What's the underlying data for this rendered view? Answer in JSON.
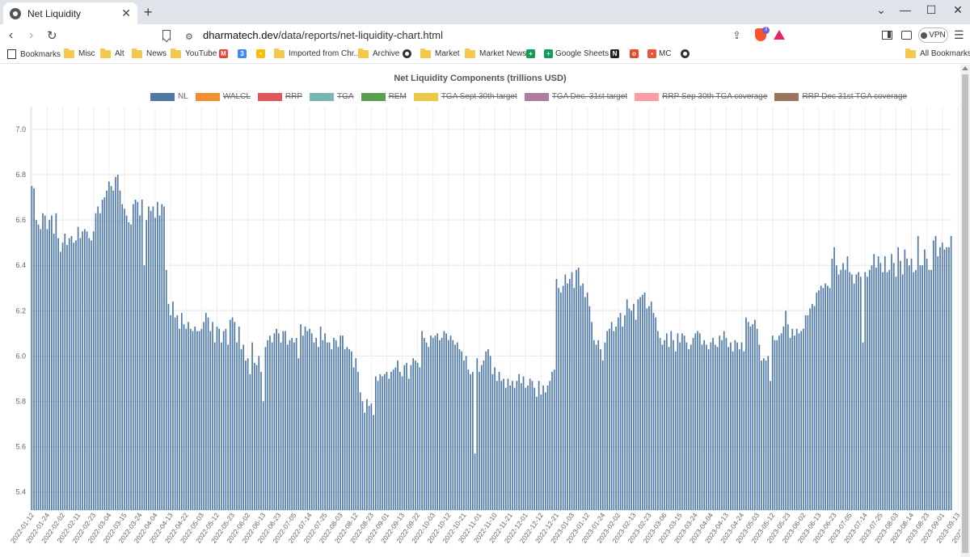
{
  "browser": {
    "tab_title": "Net Liquidity",
    "tab_close": "✕",
    "new_tab": "+",
    "url_host": "dharmatech.dev",
    "url_path": "/data/reports/net-liquidity-chart.html",
    "vpn_label": "VPN",
    "brave_badge_count": "3",
    "window_controls": [
      "⌄",
      "—",
      "☐",
      "✕"
    ]
  },
  "bookmarks": [
    {
      "label": "Bookmarks",
      "icon": "bookmarks-icon"
    },
    {
      "label": "Misc",
      "icon": "folder-icon"
    },
    {
      "label": "Alt",
      "icon": "folder-icon"
    },
    {
      "label": "News",
      "icon": "folder-icon"
    },
    {
      "label": "YouTube",
      "icon": "folder-icon"
    },
    {
      "label": "",
      "icon": "gmail-icon"
    },
    {
      "label": "",
      "icon": "calendar-icon"
    },
    {
      "label": "",
      "icon": "keep-icon"
    },
    {
      "label": "Imported from Chr...",
      "icon": "folder-icon"
    },
    {
      "label": "Archive",
      "icon": "folder-icon"
    },
    {
      "label": "",
      "icon": "globe-icon"
    },
    {
      "label": "Market",
      "icon": "folder-icon"
    },
    {
      "label": "Market News",
      "icon": "folder-icon"
    },
    {
      "label": "",
      "icon": "sheets-icon"
    },
    {
      "label": "Google Sheets",
      "icon": "sheets-icon"
    },
    {
      "label": "",
      "icon": "notion-icon"
    },
    {
      "label": "",
      "icon": "red-app-icon"
    },
    {
      "label": "MC",
      "icon": "mc-icon"
    },
    {
      "label": "",
      "icon": "globe-icon"
    },
    {
      "label": "All Bookmarks",
      "icon": "folder-icon"
    }
  ],
  "chart_data": {
    "type": "bar",
    "title": "Net Liquidity Components (trillions USD)",
    "ylim": [
      5.32,
      7.1
    ],
    "yticks": [
      5.4,
      5.6,
      5.8,
      6.0,
      6.2,
      6.4,
      6.6,
      6.8,
      7.0
    ],
    "legend": [
      {
        "name": "NL",
        "color": "#4e79a7",
        "visible": true
      },
      {
        "name": "WALCL",
        "color": "#f28e2b",
        "visible": false
      },
      {
        "name": "RRP",
        "color": "#e15759",
        "visible": false
      },
      {
        "name": "TGA",
        "color": "#76b7b2",
        "visible": false
      },
      {
        "name": "REM",
        "color": "#59a14f",
        "visible": false
      },
      {
        "name": "TGA Sept 30th target",
        "color": "#edc948",
        "visible": false
      },
      {
        "name": "TGA Dec. 31st target",
        "color": "#b07aa1",
        "visible": false
      },
      {
        "name": "RRP Sep 30th TGA coverage",
        "color": "#ff9da7",
        "visible": false
      },
      {
        "name": "RRP Dec 31st TGA coverage",
        "color": "#9c755f",
        "visible": false
      }
    ],
    "x_tick_labels": [
      "2022-01-12",
      "2022-01-24",
      "2022-02-02",
      "2022-02-11",
      "2022-02-23",
      "2022-03-04",
      "2022-03-15",
      "2022-03-24",
      "2022-04-04",
      "2022-04-13",
      "2022-04-22",
      "2022-05-03",
      "2022-05-12",
      "2022-05-23",
      "2022-06-02",
      "2022-06-13",
      "2022-06-23",
      "2022-07-05",
      "2022-07-14",
      "2022-07-25",
      "2022-08-03",
      "2022-08-12",
      "2022-08-23",
      "2022-09-01",
      "2022-09-13",
      "2022-09-22",
      "2022-10-03",
      "2022-10-12",
      "2022-10-21",
      "2022-11-01",
      "2022-11-10",
      "2022-11-21",
      "2022-12-01",
      "2022-12-12",
      "2022-12-21",
      "2023-01-03",
      "2023-01-12",
      "2023-01-24",
      "2023-02-02",
      "2023-02-13",
      "2023-02-23",
      "2023-03-06",
      "2023-03-15",
      "2023-03-24",
      "2023-04-04",
      "2023-04-13",
      "2023-04-24",
      "2023-05-03",
      "2023-05-12",
      "2023-05-23",
      "2023-06-02",
      "2023-06-13",
      "2023-06-23",
      "2023-07-05",
      "2023-07-14",
      "2023-07-25",
      "2023-08-03",
      "2023-08-14",
      "2023-08-23",
      "2023-09-01",
      "2023-09-13",
      "2023-09-22",
      "2023-10-03",
      "2023-10-12",
      "2023-10-23",
      "2023-11-01",
      "2023-11-10",
      "2023-11-21",
      "2023-12-01",
      "2023-12-12",
      "2023-12-21",
      "2024-01-03",
      "2024-01-12",
      "2024-01-24",
      "2024-02-02",
      "2024-02-13",
      "2024-02-23",
      "2024-03-05",
      "2024-03-14"
    ],
    "bars_per_tick": 7,
    "values": [
      6.75,
      6.74,
      6.6,
      6.58,
      6.56,
      6.63,
      6.62,
      6.56,
      6.6,
      6.62,
      6.54,
      6.63,
      6.52,
      6.46,
      6.5,
      6.54,
      6.49,
      6.52,
      6.53,
      6.5,
      6.51,
      6.57,
      6.52,
      6.55,
      6.56,
      6.55,
      6.52,
      6.51,
      6.55,
      6.63,
      6.66,
      6.63,
      6.69,
      6.7,
      6.73,
      6.77,
      6.75,
      6.73,
      6.79,
      6.8,
      6.73,
      6.67,
      6.65,
      6.62,
      6.59,
      6.58,
      6.67,
      6.69,
      6.68,
      6.62,
      6.69,
      6.4,
      6.6,
      6.66,
      6.64,
      6.66,
      6.61,
      6.68,
      6.62,
      6.67,
      6.66,
      6.38,
      6.23,
      6.18,
      6.24,
      6.17,
      6.18,
      6.12,
      6.19,
      6.14,
      6.12,
      6.15,
      6.12,
      6.11,
      6.13,
      6.11,
      6.11,
      6.12,
      6.15,
      6.19,
      6.17,
      6.11,
      6.15,
      6.06,
      6.13,
      6.12,
      6.06,
      6.11,
      6.12,
      6.05,
      6.16,
      6.17,
      6.15,
      6.06,
      6.13,
      6.03,
      6.05,
      5.98,
      5.99,
      5.92,
      6.06,
      5.97,
      5.96,
      6.0,
      5.93,
      5.8,
      6.04,
      6.07,
      6.09,
      6.06,
      6.1,
      6.12,
      6.1,
      6.06,
      6.11,
      6.11,
      6.05,
      6.07,
      6.08,
      6.06,
      6.08,
      5.99,
      6.14,
      6.09,
      6.13,
      6.11,
      6.12,
      6.1,
      6.06,
      6.08,
      6.04,
      6.13,
      6.07,
      6.1,
      6.06,
      6.06,
      6.03,
      6.08,
      6.07,
      6.04,
      6.09,
      6.09,
      6.03,
      6.04,
      6.03,
      6.02,
      5.95,
      5.99,
      5.93,
      5.84,
      5.8,
      5.75,
      5.81,
      5.78,
      5.79,
      5.74,
      5.91,
      5.89,
      5.92,
      5.91,
      5.92,
      5.93,
      5.9,
      5.93,
      5.94,
      5.95,
      5.98,
      5.93,
      5.91,
      5.96,
      5.97,
      5.9,
      5.96,
      5.99,
      5.98,
      5.97,
      5.95,
      6.11,
      6.08,
      6.06,
      6.04,
      6.09,
      6.08,
      6.09,
      6.1,
      6.07,
      6.08,
      6.11,
      6.1,
      6.07,
      6.09,
      6.07,
      6.05,
      6.06,
      6.03,
      6.02,
      5.98,
      6.0,
      5.94,
      5.92,
      5.93,
      5.57,
      5.99,
      5.93,
      5.96,
      5.98,
      6.02,
      6.03,
      6.0,
      5.92,
      5.95,
      5.89,
      5.93,
      5.89,
      5.9,
      5.86,
      5.9,
      5.87,
      5.89,
      5.86,
      5.89,
      5.92,
      5.88,
      5.91,
      5.86,
      5.87,
      5.9,
      5.89,
      5.86,
      5.82,
      5.89,
      5.83,
      5.87,
      5.84,
      5.87,
      5.89,
      5.93,
      5.94,
      6.34,
      6.3,
      6.28,
      6.31,
      6.36,
      6.32,
      6.34,
      6.37,
      6.3,
      6.38,
      6.39,
      6.31,
      6.32,
      6.26,
      6.28,
      6.22,
      6.15,
      6.07,
      6.05,
      6.07,
      6.03,
      5.98,
      6.06,
      6.11,
      6.12,
      6.15,
      6.11,
      6.13,
      6.17,
      6.19,
      6.13,
      6.18,
      6.25,
      6.21,
      6.2,
      6.23,
      6.16,
      6.25,
      6.26,
      6.27,
      6.28,
      6.21,
      6.22,
      6.24,
      6.19,
      6.17,
      6.11,
      6.08,
      6.05,
      6.07,
      6.1,
      6.04,
      6.11,
      6.07,
      6.02,
      6.1,
      6.06,
      6.1,
      6.09,
      6.06,
      6.03,
      6.05,
      6.08,
      6.1,
      6.11,
      6.1,
      6.05,
      6.07,
      6.05,
      6.03,
      6.06,
      6.08,
      6.05,
      6.04,
      6.09,
      6.07,
      6.11,
      6.08,
      6.04,
      6.06,
      6.02,
      6.07,
      6.06,
      6.03,
      6.06,
      6.02,
      6.17,
      6.15,
      6.13,
      6.14,
      6.16,
      6.12,
      6.05,
      5.98,
      5.99,
      5.98,
      6.0,
      5.89,
      6.09,
      6.07,
      6.07,
      6.09,
      6.1,
      6.13,
      6.2,
      6.14,
      6.08,
      6.12,
      6.09,
      6.12,
      6.1,
      6.11,
      6.12,
      6.18,
      6.18,
      6.21,
      6.23,
      6.22,
      6.28,
      6.29,
      6.31,
      6.3,
      6.32,
      6.31,
      6.3,
      6.43,
      6.48,
      6.4,
      6.36,
      6.38,
      6.41,
      6.38,
      6.44,
      6.37,
      6.36,
      6.32,
      6.36,
      6.37,
      6.35,
      6.06,
      6.37,
      6.35,
      6.38,
      6.4,
      6.45,
      6.39,
      6.44,
      6.41,
      6.37,
      6.44,
      6.37,
      6.38,
      6.45,
      6.41,
      6.35,
      6.48,
      6.42,
      6.36,
      6.47,
      6.43,
      6.4,
      6.43,
      6.37,
      6.38,
      6.53,
      6.4,
      6.4,
      6.47,
      6.43,
      6.38,
      6.38,
      6.51,
      6.53,
      6.44,
      6.48,
      6.5,
      6.47,
      6.48,
      6.48,
      6.53
    ]
  }
}
